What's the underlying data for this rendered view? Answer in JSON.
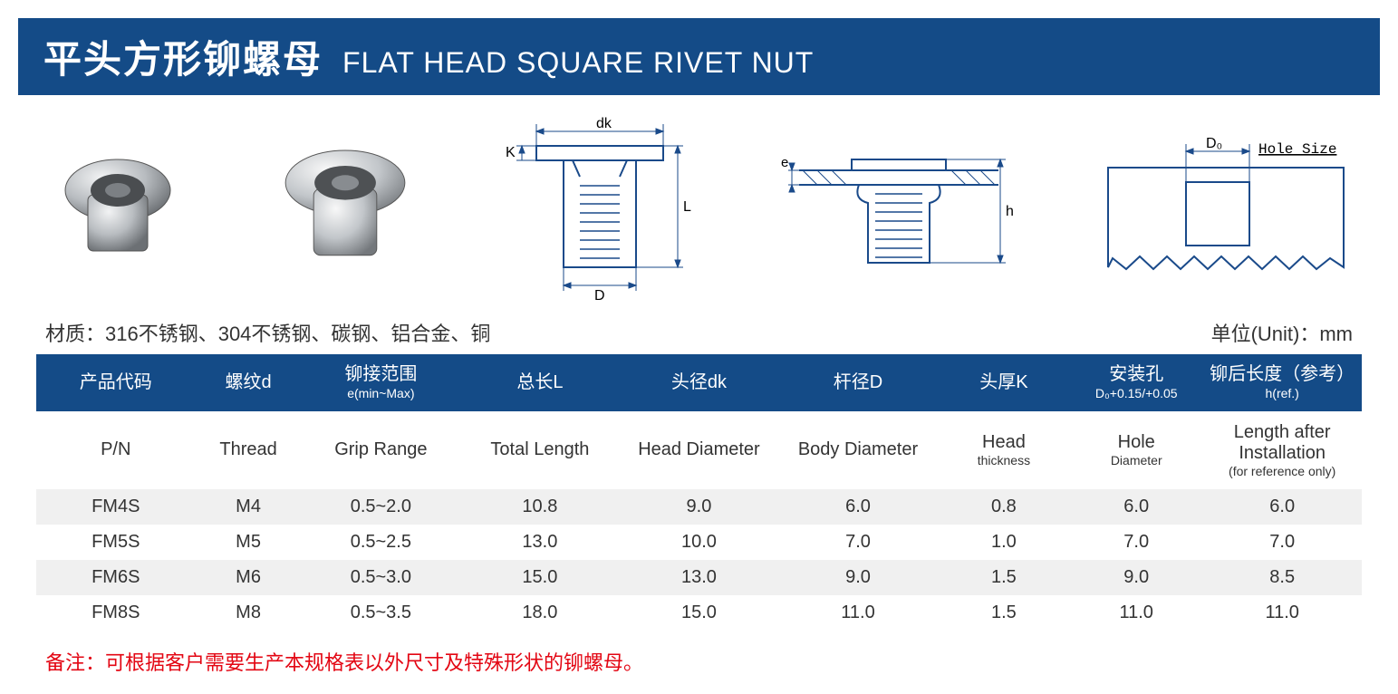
{
  "title": {
    "cn": "平头方形铆螺母",
    "en": "FLAT HEAD SQUARE RIVET NUT"
  },
  "colors": {
    "header_bg": "#144b87",
    "header_text": "#ffffff",
    "row_alt": "#f0f0f0",
    "diagram_stroke": "#1a4a8a",
    "note_color": "#e30613"
  },
  "material_label": "材质：316不锈钢、304不锈钢、碳钢、铝合金、铜",
  "unit_label": "单位(Unit)：mm",
  "diagram_labels": {
    "dk": "dk",
    "K": "K",
    "L": "L",
    "D": "D",
    "e": "e",
    "h": "h",
    "D0": "D₀",
    "hole_size": "Hole Size"
  },
  "table": {
    "columns_cn": [
      "产品代码",
      "螺纹d",
      "铆接范围\ne(min~Max)",
      "总长L",
      "头径dk",
      "杆径D",
      "头厚K",
      "安装孔\nD₀+0.15/+0.05",
      "铆后长度（参考）\nh(ref.)"
    ],
    "columns_en": [
      "P/N",
      "Thread",
      "Grip Range",
      "Total Length",
      "Head Diameter",
      "Body Diameter",
      "Head\nthickness",
      "Hole\nDiameter",
      "Length after Installation\n(for reference only)"
    ],
    "col_widths_pct": [
      12,
      8,
      12,
      12,
      12,
      12,
      10,
      10,
      12
    ],
    "rows": [
      [
        "FM4S",
        "M4",
        "0.5~2.0",
        "10.8",
        "9.0",
        "6.0",
        "0.8",
        "6.0",
        "6.0"
      ],
      [
        "FM5S",
        "M5",
        "0.5~2.5",
        "13.0",
        "10.0",
        "7.0",
        "1.0",
        "7.0",
        "7.0"
      ],
      [
        "FM6S",
        "M6",
        "0.5~3.0",
        "15.0",
        "13.0",
        "9.0",
        "1.5",
        "9.0",
        "8.5"
      ],
      [
        "FM8S",
        "M8",
        "0.5~3.5",
        "18.0",
        "15.0",
        "11.0",
        "1.5",
        "11.0",
        "11.0"
      ]
    ]
  },
  "note": "备注：可根据客户需要生产本规格表以外尺寸及特殊形状的铆螺母。"
}
